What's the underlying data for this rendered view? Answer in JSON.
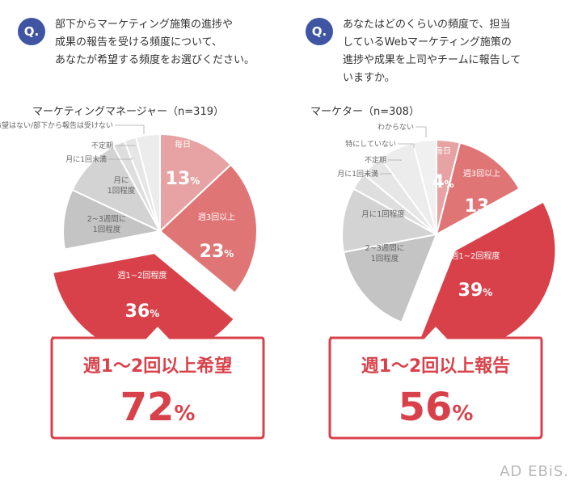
{
  "questions": [
    {
      "badge": "Q.",
      "lines": [
        "部下からマーケティング施策の進捗や",
        "成果の報告を受ける頻度について、",
        "あなたが希望する頻度をお選びください。"
      ]
    },
    {
      "badge": "Q.",
      "lines": [
        "あなたはどのくらいの頻度で、担当",
        "しているWebマーケティング施策の",
        "進捗や成果を上司やチームに報告して",
        "いますか。"
      ]
    }
  ],
  "colors": {
    "weekly3": "#e7a3a3",
    "weekly3alt": "#e07575",
    "weekly12": "#d9414a",
    "gray1": "#c4c4c4",
    "gray2": "#d3d3d3",
    "gray3": "#dedede",
    "gray4": "#e6e6e6",
    "gray5": "#ececec",
    "accent": "#d9414a",
    "badge": "#3f55a3"
  },
  "chart_data": [
    {
      "type": "pie",
      "title": "マーケティングマネージャー（n=319）",
      "slices": [
        {
          "name": "毎日",
          "value": 13,
          "label": "毎日",
          "pct": "13",
          "unit": "%"
        },
        {
          "name": "週3回以上",
          "value": 23,
          "label": "週3回以上",
          "pct": "23",
          "unit": "%"
        },
        {
          "name": "週1~2回程度",
          "value": 36,
          "label": "週1~2回程度",
          "pct": "36",
          "unit": "%"
        },
        {
          "name": "2~3週間に1回程度",
          "value": 10,
          "label": "2~3週間に1回程度"
        },
        {
          "name": "月に1回程度",
          "value": 10,
          "label": "月に1回程度"
        },
        {
          "name": "月に1回未満",
          "value": 2,
          "label": "月に1回未満"
        },
        {
          "name": "不定期",
          "value": 2,
          "label": "不定期"
        },
        {
          "name": "特に希望はない/部下から報告は受けない",
          "value": 4,
          "label": "特に希望はない/部下から報告は受けない"
        }
      ],
      "callout_title": "週1〜2回以上希望",
      "callout_value": "72",
      "callout_unit": "%"
    },
    {
      "type": "pie",
      "title": "マーケター（n=308）",
      "slices": [
        {
          "name": "毎日",
          "value": 4,
          "label": "毎日",
          "pct": "4",
          "unit": "%"
        },
        {
          "name": "週3回以上",
          "value": 13,
          "label": "週3回以上",
          "pct": "13",
          "unit": "%"
        },
        {
          "name": "週1~2回程度",
          "value": 39,
          "label": "週1~2回程度",
          "pct": "39",
          "unit": "%"
        },
        {
          "name": "2~3週間に1回程度",
          "value": 16,
          "label": "2~3週間に1回程度"
        },
        {
          "name": "月に1回程度",
          "value": 11,
          "label": "月に1回程度"
        },
        {
          "name": "月に1回未満",
          "value": 3,
          "label": "月に1回未満"
        },
        {
          "name": "不定期",
          "value": 4,
          "label": "不定期"
        },
        {
          "name": "特にしていない",
          "value": 6,
          "label": "特にしていない"
        },
        {
          "name": "わからない",
          "value": 4,
          "label": "わからない"
        }
      ],
      "callout_title": "週1〜2回以上報告",
      "callout_value": "56",
      "callout_unit": "%"
    }
  ],
  "brand": "AD EBiS."
}
